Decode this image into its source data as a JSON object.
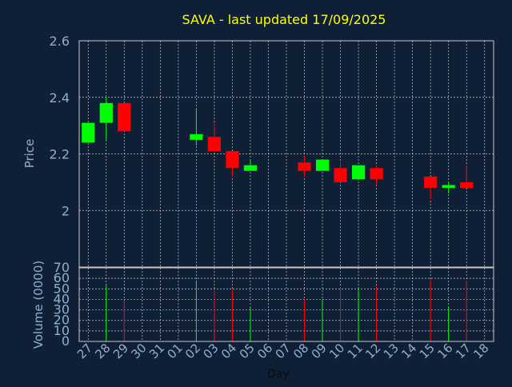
{
  "chart_data": {
    "type": "candlestick",
    "title": "SAVA - last updated 17/09/2025",
    "xlabel": "Day",
    "ylabel_price": "Price",
    "ylabel_volume": "Volume (0000)",
    "x_ticks": [
      "27",
      "28",
      "29",
      "30",
      "31",
      "01",
      "02",
      "03",
      "04",
      "05",
      "06",
      "07",
      "08",
      "09",
      "10",
      "11",
      "12",
      "13",
      "14",
      "15",
      "16",
      "17",
      "18"
    ],
    "price_ylim": [
      1.8,
      2.6
    ],
    "price_ticks": [
      "2",
      "2.2",
      "2.4",
      "2.6"
    ],
    "volume_ylim": [
      0,
      70
    ],
    "volume_ticks": [
      "0",
      "10",
      "20",
      "30",
      "40",
      "50",
      "60",
      "70"
    ],
    "grid": true,
    "candles": [
      {
        "day": "27",
        "open": 2.24,
        "high": 2.31,
        "low": 2.24,
        "close": 2.31,
        "volume": 0
      },
      {
        "day": "28",
        "open": 2.31,
        "high": 2.4,
        "low": 2.25,
        "close": 2.38,
        "volume": 53
      },
      {
        "day": "29",
        "open": 2.38,
        "high": 2.38,
        "low": 2.28,
        "close": 2.28,
        "volume": 39
      },
      {
        "day": "02",
        "open": 2.25,
        "high": 2.36,
        "low": 2.23,
        "close": 2.27,
        "volume": 58
      },
      {
        "day": "03",
        "open": 2.26,
        "high": 2.31,
        "low": 2.21,
        "close": 2.21,
        "volume": 49
      },
      {
        "day": "04",
        "open": 2.21,
        "high": 2.21,
        "low": 2.12,
        "close": 2.15,
        "volume": 49
      },
      {
        "day": "05",
        "open": 2.14,
        "high": 2.18,
        "low": 2.14,
        "close": 2.16,
        "volume": 32
      },
      {
        "day": "08",
        "open": 2.17,
        "high": 2.19,
        "low": 2.12,
        "close": 2.14,
        "volume": 40
      },
      {
        "day": "09",
        "open": 2.14,
        "high": 2.18,
        "low": 2.14,
        "close": 2.18,
        "volume": 40
      },
      {
        "day": "10",
        "open": 2.15,
        "high": 2.17,
        "low": 2.1,
        "close": 2.1,
        "volume": 52
      },
      {
        "day": "11",
        "open": 2.11,
        "high": 2.16,
        "low": 2.11,
        "close": 2.16,
        "volume": 50
      },
      {
        "day": "12",
        "open": 2.15,
        "high": 2.16,
        "low": 2.09,
        "close": 2.11,
        "volume": 53
      },
      {
        "day": "15",
        "open": 2.12,
        "high": 2.12,
        "low": 2.04,
        "close": 2.08,
        "volume": 59
      },
      {
        "day": "16",
        "open": 2.08,
        "high": 2.1,
        "low": 2.06,
        "close": 2.09,
        "volume": 33
      },
      {
        "day": "17",
        "open": 2.1,
        "high": 2.16,
        "low": 2.08,
        "close": 2.08,
        "volume": 58
      }
    ],
    "colors": {
      "background": "#0f2036",
      "up": "#00ff00",
      "down": "#ff0000",
      "axis_text": "#8fb0d0",
      "title": "#ffff00",
      "grid": "#c8c8c8"
    }
  }
}
